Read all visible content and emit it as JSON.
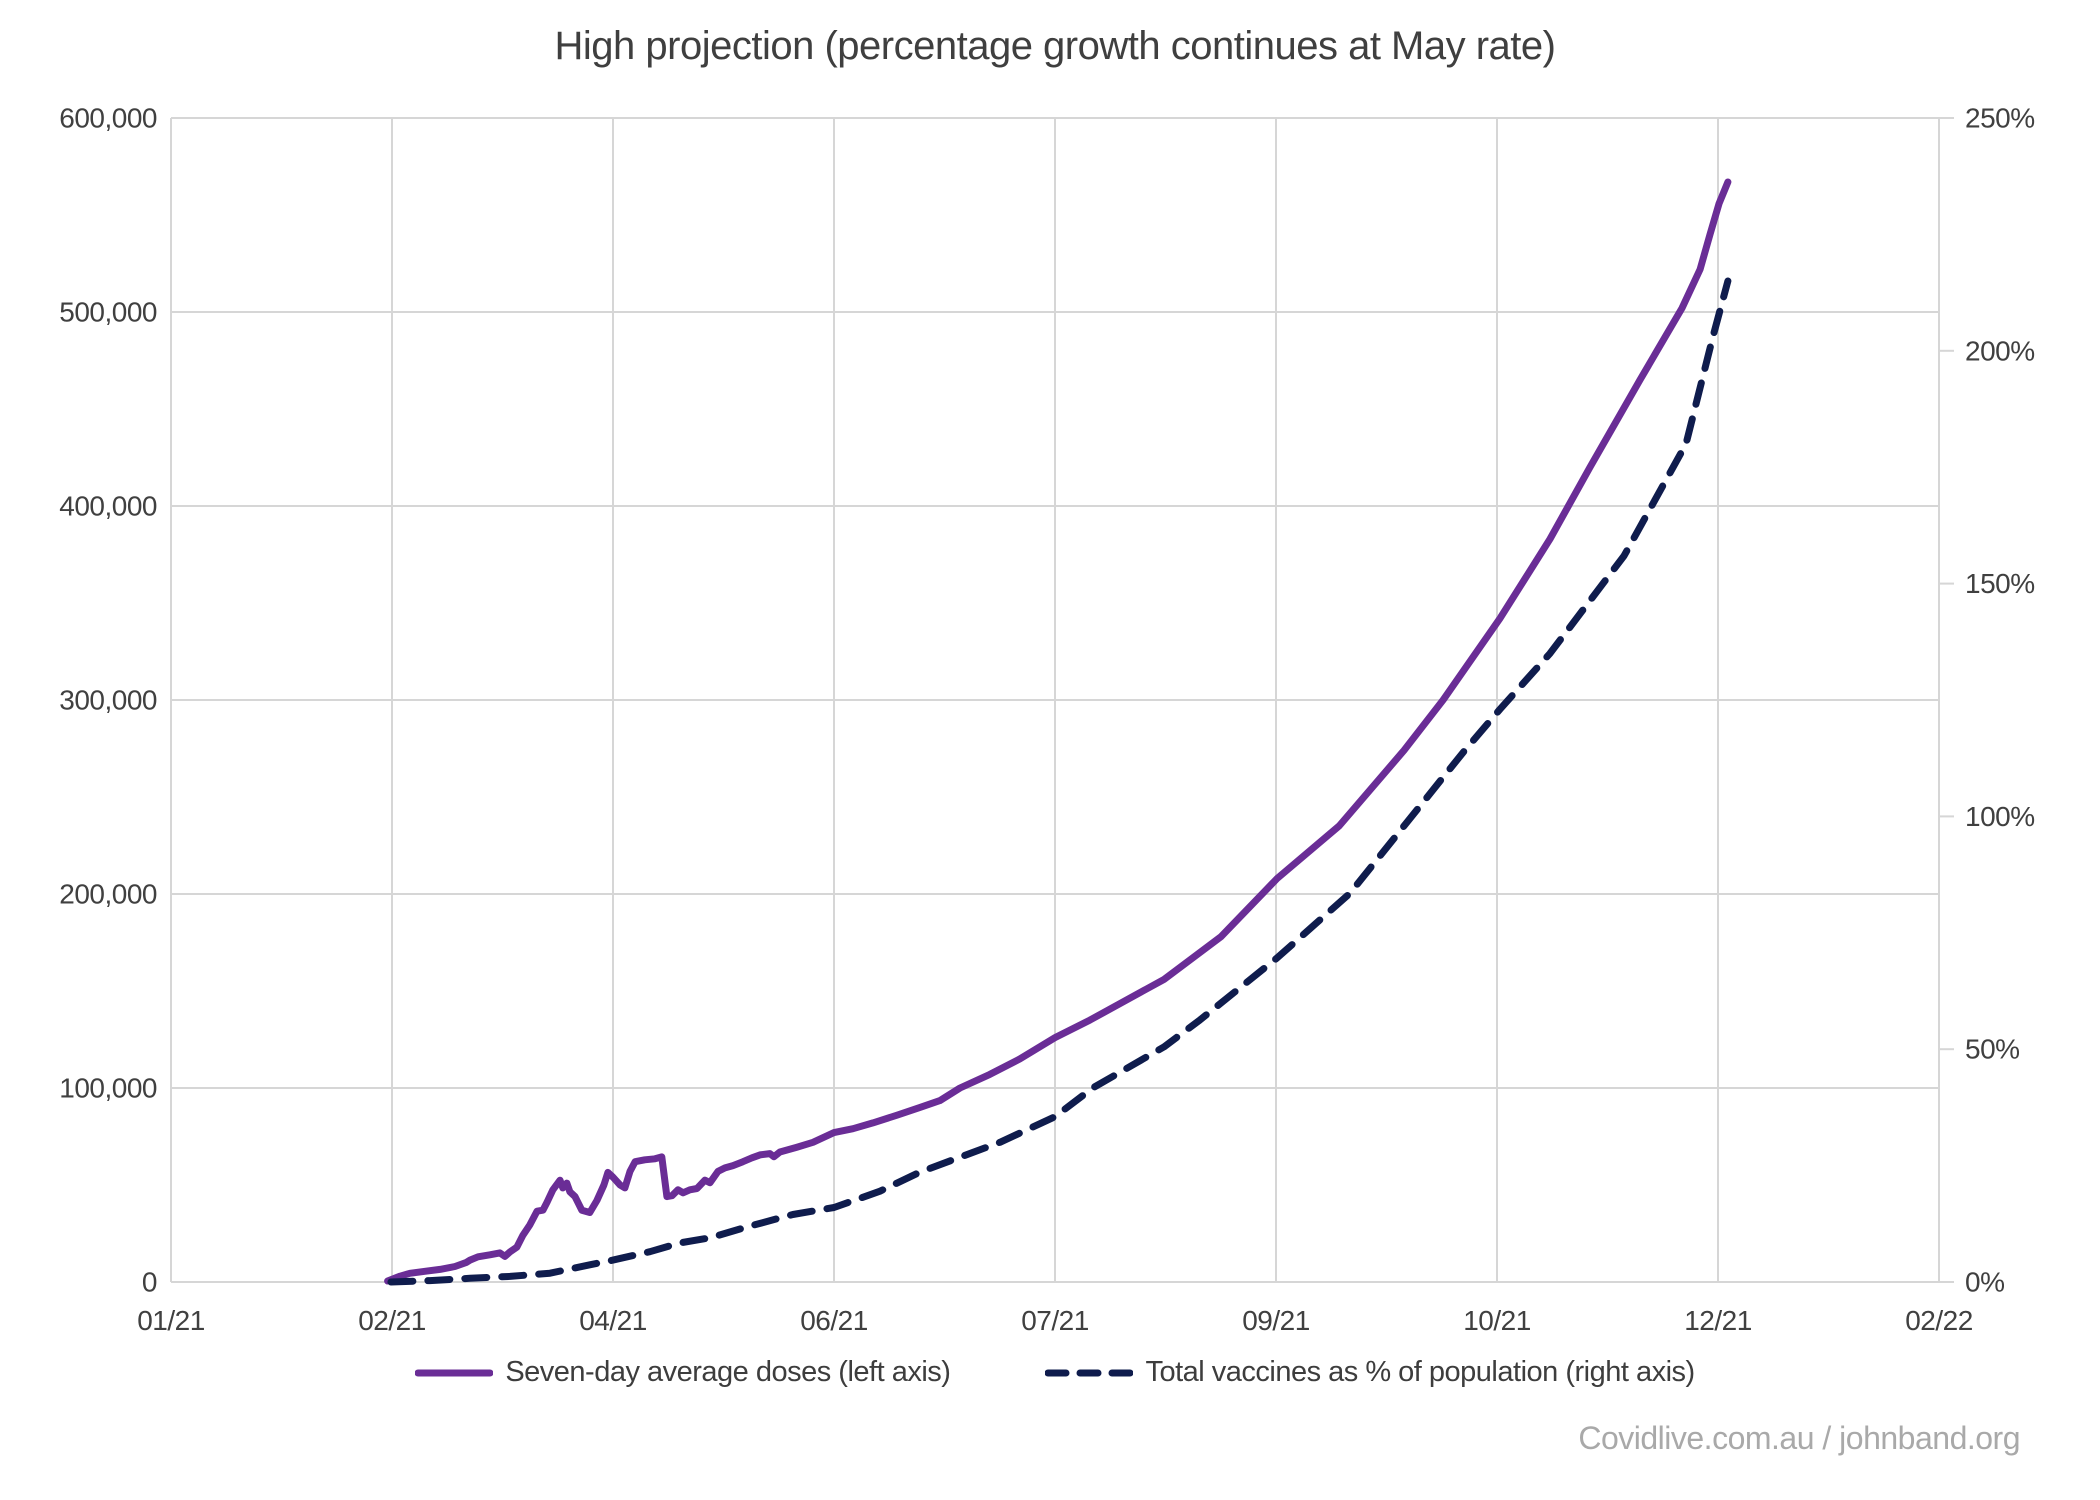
{
  "title": "High projection (percentage growth continues at May rate)",
  "footer_credit": "Covidlive.com.au / johnband.org",
  "colors": {
    "doses_line": "#6a2d96",
    "percent_line": "#0f1c4d",
    "grid": "#d6d6d6",
    "axis_text": "#404040",
    "title_text": "#3f3f3f",
    "footer_text": "#a9a9a9",
    "background": "#ffffff"
  },
  "legend": [
    {
      "label": "Seven-day average doses (left axis)",
      "style": "solid"
    },
    {
      "label": "Total vaccines as % of population (right axis)",
      "style": "dashed"
    }
  ],
  "chart_data": {
    "type": "line",
    "title": "High projection (percentage growth continues at May rate)",
    "x_axis": {
      "tick_labels": [
        "01/21",
        "02/21",
        "04/21",
        "06/21",
        "07/21",
        "09/21",
        "10/21",
        "12/21",
        "02/22"
      ],
      "unit": "tick index (0 = 01/21 ... 8 = 02/22), ticks evenly spaced"
    },
    "left_axis": {
      "min": 0,
      "max": 600000,
      "tick_interval": 100000,
      "tick_labels": [
        "0",
        "100,000",
        "200,000",
        "300,000",
        "400,000",
        "500,000",
        "600,000"
      ],
      "label": "Seven-day average doses"
    },
    "right_axis": {
      "min": 0,
      "max": 250,
      "tick_interval": 50,
      "tick_labels": [
        "0%",
        "50%",
        "100%",
        "150%",
        "200%",
        "250%"
      ],
      "label": "Total vaccines as % of population"
    },
    "grid": true,
    "legend_position": "bottom",
    "series": [
      {
        "name": "Seven-day average doses (left axis)",
        "axis": "left",
        "line": "solid",
        "color": "#6a2d96",
        "points": [
          [
            0.98,
            500
          ],
          [
            1.036,
            3000
          ],
          [
            1.081,
            4500
          ],
          [
            1.149,
            5500
          ],
          [
            1.217,
            6500
          ],
          [
            1.285,
            8000
          ],
          [
            1.335,
            10000
          ],
          [
            1.353,
            11300
          ],
          [
            1.389,
            13000
          ],
          [
            1.443,
            14000
          ],
          [
            1.488,
            15000
          ],
          [
            1.511,
            13200
          ],
          [
            1.534,
            15500
          ],
          [
            1.565,
            18000
          ],
          [
            1.592,
            24000
          ],
          [
            1.624,
            29500
          ],
          [
            1.656,
            36500
          ],
          [
            1.683,
            37000
          ],
          [
            1.701,
            41000
          ],
          [
            1.728,
            47500
          ],
          [
            1.76,
            52500
          ],
          [
            1.773,
            48500
          ],
          [
            1.791,
            51000
          ],
          [
            1.805,
            46500
          ],
          [
            1.828,
            44000
          ],
          [
            1.859,
            37000
          ],
          [
            1.895,
            35800
          ],
          [
            1.927,
            42000
          ],
          [
            1.959,
            50000
          ],
          [
            1.977,
            56500
          ],
          [
            2.0,
            54000
          ],
          [
            2.032,
            50000
          ],
          [
            2.054,
            48500
          ],
          [
            2.077,
            57000
          ],
          [
            2.1,
            62000
          ],
          [
            2.144,
            63000
          ],
          [
            2.19,
            63500
          ],
          [
            2.221,
            64500
          ],
          [
            2.244,
            44000
          ],
          [
            2.267,
            44500
          ],
          [
            2.294,
            47500
          ],
          [
            2.317,
            46000
          ],
          [
            2.348,
            47500
          ],
          [
            2.38,
            48200
          ],
          [
            2.416,
            52500
          ],
          [
            2.439,
            51200
          ],
          [
            2.475,
            57000
          ],
          [
            2.507,
            58800
          ],
          [
            2.543,
            60000
          ],
          [
            2.588,
            62000
          ],
          [
            2.629,
            64000
          ],
          [
            2.665,
            65500
          ],
          [
            2.71,
            66200
          ],
          [
            2.728,
            64600
          ],
          [
            2.755,
            67000
          ],
          [
            2.832,
            69500
          ],
          [
            2.905,
            72000
          ],
          [
            3.0,
            77000
          ],
          [
            3.086,
            79000
          ],
          [
            3.176,
            82000
          ],
          [
            3.285,
            86000
          ],
          [
            3.389,
            90000
          ],
          [
            3.479,
            93500
          ],
          [
            3.57,
            100000
          ],
          [
            3.705,
            107000
          ],
          [
            3.841,
            115000
          ],
          [
            4.0,
            126000
          ],
          [
            4.158,
            135000
          ],
          [
            4.222,
            139000
          ],
          [
            4.493,
            156000
          ],
          [
            4.751,
            178000
          ],
          [
            5.005,
            208000
          ],
          [
            5.285,
            235000
          ],
          [
            5.579,
            274000
          ],
          [
            5.756,
            300000
          ],
          [
            6.013,
            342000
          ],
          [
            6.24,
            383000
          ],
          [
            6.421,
            420000
          ],
          [
            6.647,
            465000
          ],
          [
            6.837,
            502000
          ],
          [
            6.919,
            522000
          ],
          [
            6.964,
            540000
          ],
          [
            7.005,
            556000
          ],
          [
            7.045,
            567000
          ]
        ]
      },
      {
        "name": "Total vaccines as % of population (right axis)",
        "axis": "right",
        "line": "dashed",
        "color": "#0f1c4d",
        "points": [
          [
            0.995,
            0
          ],
          [
            1.172,
            0.3
          ],
          [
            1.353,
            0.8
          ],
          [
            1.534,
            1.2
          ],
          [
            1.715,
            1.9
          ],
          [
            1.895,
            3.7
          ],
          [
            2.0,
            4.7
          ],
          [
            2.167,
            6.5
          ],
          [
            2.303,
            8.4
          ],
          [
            2.439,
            9.5
          ],
          [
            2.62,
            12
          ],
          [
            2.814,
            14.5
          ],
          [
            3.0,
            16
          ],
          [
            3.208,
            19.5
          ],
          [
            3.389,
            23.6
          ],
          [
            3.751,
            30
          ],
          [
            4.0,
            35.5
          ],
          [
            4.172,
            41.7
          ],
          [
            4.493,
            50.5
          ],
          [
            4.656,
            56.3
          ],
          [
            5.005,
            69.6
          ],
          [
            5.335,
            83.5
          ],
          [
            5.851,
            114
          ],
          [
            6.013,
            123
          ],
          [
            6.24,
            135
          ],
          [
            6.575,
            156
          ],
          [
            6.855,
            180
          ],
          [
            6.977,
            203
          ],
          [
            7.045,
            215
          ]
        ]
      }
    ]
  }
}
